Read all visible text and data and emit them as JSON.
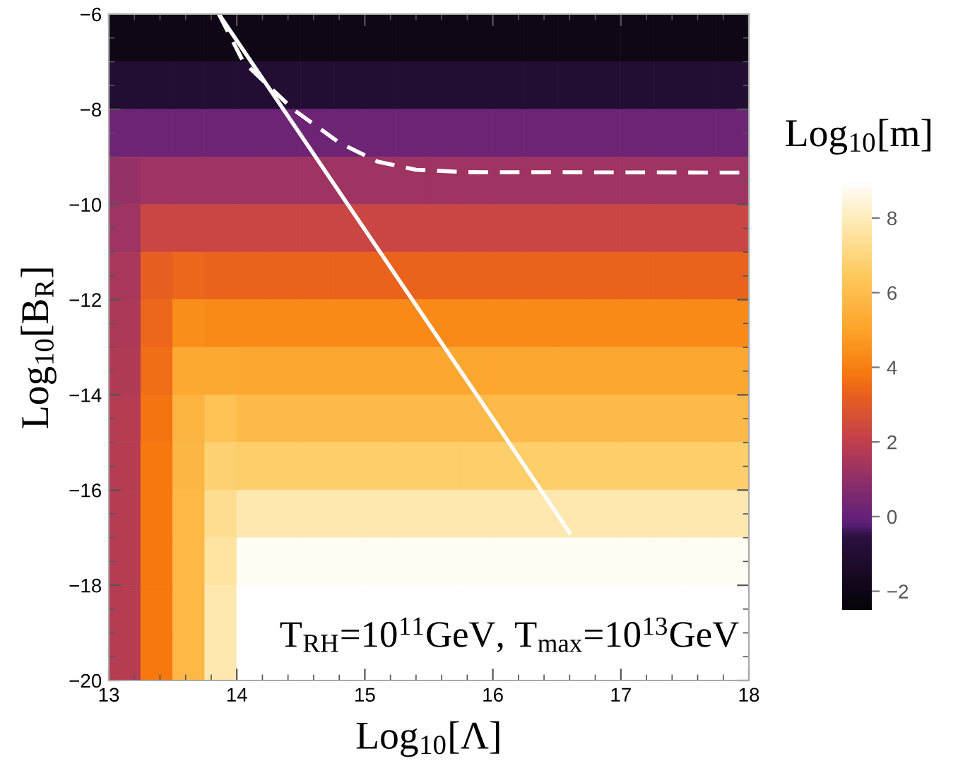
{
  "chart_data": {
    "type": "heatmap",
    "xlabel": "Log$_{10}$[Λ]",
    "ylabel": "Log$_{10}$[B$_{R}$]",
    "clabel": "Log$_{10}$[m]",
    "xlim": [
      13,
      18
    ],
    "xticks": [
      13,
      14,
      15,
      16,
      17,
      18
    ],
    "ylim": [
      -20,
      -6
    ],
    "yticks": [
      -20,
      -18,
      -16,
      -14,
      -12,
      -10,
      -8,
      -6
    ],
    "clim": [
      -2.5,
      9
    ],
    "cticks": [
      -2,
      0,
      2,
      4,
      6,
      8
    ],
    "cells": [
      [
        -2,
        -2,
        -2,
        -2,
        -2,
        -2,
        -2,
        -2,
        -2,
        -2,
        -2,
        -2,
        -2,
        -2,
        -2,
        -2,
        -2,
        -2,
        -2,
        -2
      ],
      [
        -1,
        -1,
        -1,
        -1,
        -1,
        -1,
        -1,
        -1,
        -1,
        -1,
        -1,
        -1,
        -1,
        -1,
        -1,
        -1,
        -1,
        -1,
        -1,
        -1
      ],
      [
        0.2,
        0.2,
        0.2,
        0.2,
        0.2,
        0.2,
        0.2,
        0.2,
        0.2,
        0.2,
        0.2,
        0.2,
        0.2,
        0.2,
        0.2,
        0.2,
        0.2,
        0.2,
        0.2,
        0.2
      ],
      [
        1.1,
        1.3,
        1.3,
        1.3,
        1.3,
        1.3,
        1.3,
        1.3,
        1.3,
        1.3,
        1.3,
        1.3,
        1.3,
        1.3,
        1.3,
        1.3,
        1.3,
        1.3,
        1.3,
        1.3
      ],
      [
        1.3,
        2.3,
        2.3,
        2.3,
        2.3,
        2.3,
        2.3,
        2.3,
        2.3,
        2.3,
        2.3,
        2.3,
        2.3,
        2.3,
        2.3,
        2.3,
        2.3,
        2.3,
        2.3,
        2.3
      ],
      [
        1.5,
        3.2,
        3.4,
        3.3,
        3.3,
        3.3,
        3.3,
        3.3,
        3.3,
        3.3,
        3.3,
        3.3,
        3.3,
        3.3,
        3.3,
        3.3,
        3.3,
        3.3,
        3.3,
        3.3
      ],
      [
        1.6,
        3.4,
        4.4,
        4.3,
        4.3,
        4.3,
        4.3,
        4.3,
        4.3,
        4.3,
        4.3,
        4.3,
        4.3,
        4.3,
        4.3,
        4.3,
        4.3,
        4.3,
        4.3,
        4.3
      ],
      [
        1.7,
        3.6,
        5.2,
        5.2,
        5.1,
        5.1,
        5.1,
        5.1,
        5.1,
        5.1,
        5.1,
        5.1,
        5.1,
        5.1,
        5.1,
        5.1,
        5.1,
        5.1,
        5.1,
        5.1
      ],
      [
        1.8,
        3.7,
        5.6,
        6.2,
        5.9,
        5.9,
        5.9,
        5.9,
        5.9,
        5.9,
        5.9,
        5.9,
        5.9,
        5.9,
        5.9,
        5.9,
        5.9,
        5.9,
        5.9,
        5.9
      ],
      [
        1.8,
        3.8,
        5.7,
        6.8,
        6.7,
        6.7,
        6.7,
        6.7,
        6.7,
        6.7,
        6.7,
        6.7,
        6.7,
        6.7,
        6.7,
        6.7,
        6.7,
        6.7,
        6.7,
        6.7
      ],
      [
        1.8,
        3.8,
        5.8,
        7.3,
        7.8,
        7.8,
        7.8,
        7.8,
        7.8,
        7.8,
        7.8,
        7.8,
        7.8,
        7.8,
        7.8,
        7.8,
        7.8,
        7.8,
        7.8,
        7.8
      ],
      [
        1.8,
        3.8,
        5.8,
        7.6,
        8.8,
        8.8,
        8.8,
        8.8,
        8.8,
        8.8,
        8.8,
        8.8,
        8.8,
        8.8,
        8.8,
        8.8,
        8.8,
        8.8,
        8.8,
        8.8
      ],
      [
        1.8,
        3.8,
        5.8,
        7.8,
        9,
        9,
        9,
        9,
        9,
        9,
        9,
        9,
        9,
        9,
        9,
        9,
        9,
        9,
        9,
        9
      ],
      [
        1.8,
        3.8,
        5.8,
        7.8,
        9,
        9,
        9,
        9,
        9,
        9,
        9,
        9,
        9,
        9,
        9,
        9,
        9,
        9,
        9,
        9
      ]
    ],
    "series": [
      {
        "type": "line",
        "color": "#ffffff",
        "line_style": "solid",
        "x": [
          13.86,
          16.0,
          16.6
        ],
        "values": [
          -6,
          -14.5,
          -16.9
        ]
      },
      {
        "type": "line",
        "color": "#ffffff",
        "line_style": "dashed",
        "x": [
          13.86,
          14.05,
          14.44,
          14.8,
          15.1,
          15.4,
          15.8,
          18
        ],
        "values": [
          -6,
          -7.0,
          -8.0,
          -8.7,
          -9.1,
          -9.27,
          -9.32,
          -9.33
        ]
      }
    ],
    "annotations": [
      "T$_{RH}$=10$^{11}$GeV, T$_{max}$=10$^{13}$GeV"
    ],
    "grid": false
  }
}
